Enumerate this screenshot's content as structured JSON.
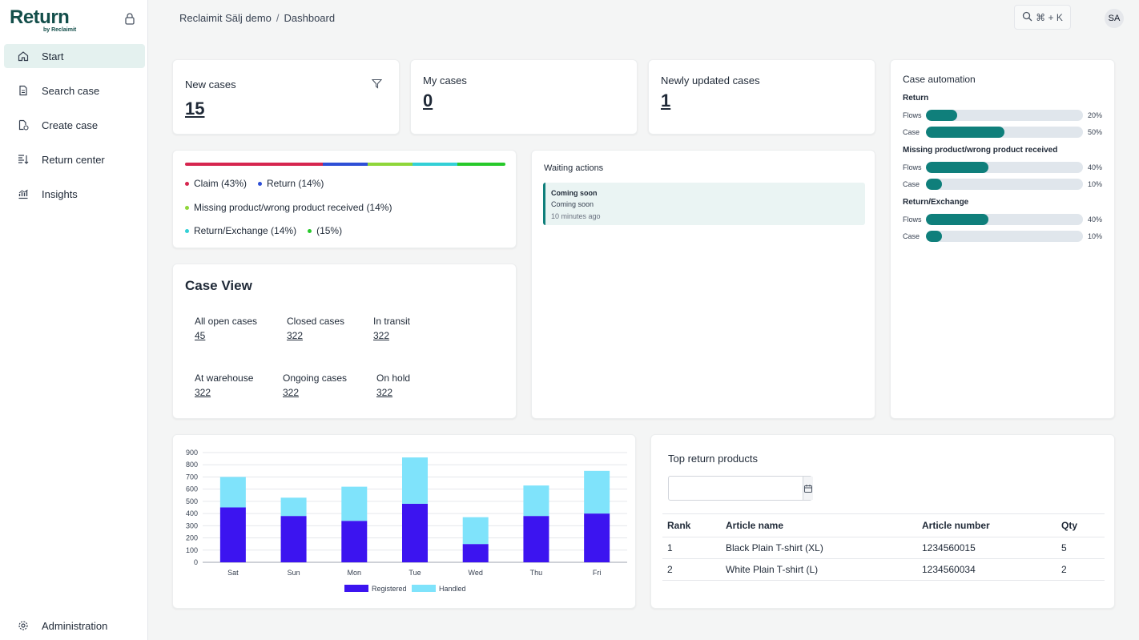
{
  "sidebar": {
    "logo": "Return",
    "logo_sub": "by Reclaimit",
    "items": [
      {
        "label": "Start",
        "icon": "home-icon"
      },
      {
        "label": "Search case",
        "icon": "document-icon"
      },
      {
        "label": "Create case",
        "icon": "file-plus-icon"
      },
      {
        "label": "Return center",
        "icon": "return-center-icon"
      },
      {
        "label": "Insights",
        "icon": "chart-icon"
      }
    ],
    "admin": {
      "label": "Administration",
      "icon": "gear-icon"
    }
  },
  "header": {
    "breadcrumb_root": "Reclaimit Sälj demo",
    "breadcrumb_sep": "/",
    "breadcrumb_current": "Dashboard",
    "search_shortcut": "⌘ + K",
    "avatar": "SA"
  },
  "stats": {
    "new_cases": {
      "label": "New cases",
      "value": "15"
    },
    "my_cases": {
      "label": "My cases",
      "value": "0"
    },
    "updated_cases": {
      "label": "Newly updated cases",
      "value": "1"
    }
  },
  "distribution": {
    "segments": [
      {
        "label": "Claim (43%)",
        "share": 43,
        "color": "#d6264f"
      },
      {
        "label": "Return (14%)",
        "share": 14,
        "color": "#2e4fd6"
      },
      {
        "label": "Missing product/wrong product received (14%)",
        "share": 14,
        "color": "#8fd63a"
      },
      {
        "label": "Return/Exchange (14%)",
        "share": 14,
        "color": "#33d0d6"
      },
      {
        "label": "(15%)",
        "share": 15,
        "color": "#27c92a"
      }
    ]
  },
  "case_view": {
    "title": "Case View",
    "items": [
      {
        "label": "All open cases",
        "value": "45"
      },
      {
        "label": "Closed cases",
        "value": "322"
      },
      {
        "label": "In transit",
        "value": "322"
      },
      {
        "label": "At warehouse",
        "value": "322"
      },
      {
        "label": "Ongoing cases",
        "value": "322"
      },
      {
        "label": "On hold",
        "value": "322"
      }
    ]
  },
  "waiting": {
    "title": "Waiting actions",
    "item_title": "Coming soon",
    "item_text": "Coming soon",
    "item_time": "10 minutes ago"
  },
  "automation": {
    "title": "Case automation",
    "groups": [
      {
        "name": "Return",
        "rows": [
          {
            "label": "Flows",
            "pct": 20,
            "text": "20%"
          },
          {
            "label": "Case",
            "pct": 50,
            "text": "50%"
          }
        ]
      },
      {
        "name": "Missing product/wrong product received",
        "rows": [
          {
            "label": "Flows",
            "pct": 40,
            "text": "40%"
          },
          {
            "label": "Case",
            "pct": 10,
            "text": "10%"
          }
        ]
      },
      {
        "name": "Return/Exchange",
        "rows": [
          {
            "label": "Flows",
            "pct": 40,
            "text": "40%"
          },
          {
            "label": "Case",
            "pct": 10,
            "text": "10%"
          }
        ]
      }
    ]
  },
  "chart_data": {
    "type": "bar",
    "stacked": true,
    "categories": [
      "Sat",
      "Sun",
      "Mon",
      "Tue",
      "Wed",
      "Thu",
      "Fri"
    ],
    "series": [
      {
        "name": "Registered",
        "color": "#3c14f0",
        "values": [
          450,
          380,
          340,
          480,
          150,
          380,
          400
        ]
      },
      {
        "name": "Handled",
        "color": "#7fe3fb",
        "values": [
          250,
          150,
          280,
          380,
          220,
          250,
          350
        ]
      }
    ],
    "yticks": [
      "0",
      "100",
      "200",
      "300",
      "400",
      "500",
      "600",
      "700",
      "800",
      "900"
    ],
    "ylim": [
      0,
      900
    ],
    "legend": "bottom"
  },
  "top_products": {
    "title": "Top return products",
    "date_placeholder": "",
    "columns": [
      "Rank",
      "Article name",
      "Article number",
      "Qty"
    ],
    "rows": [
      [
        "1",
        "Black Plain T-shirt (XL)",
        "1234560015",
        "5"
      ],
      [
        "2",
        "White Plain T-shirt (L)",
        "1234560034",
        "2"
      ]
    ]
  }
}
